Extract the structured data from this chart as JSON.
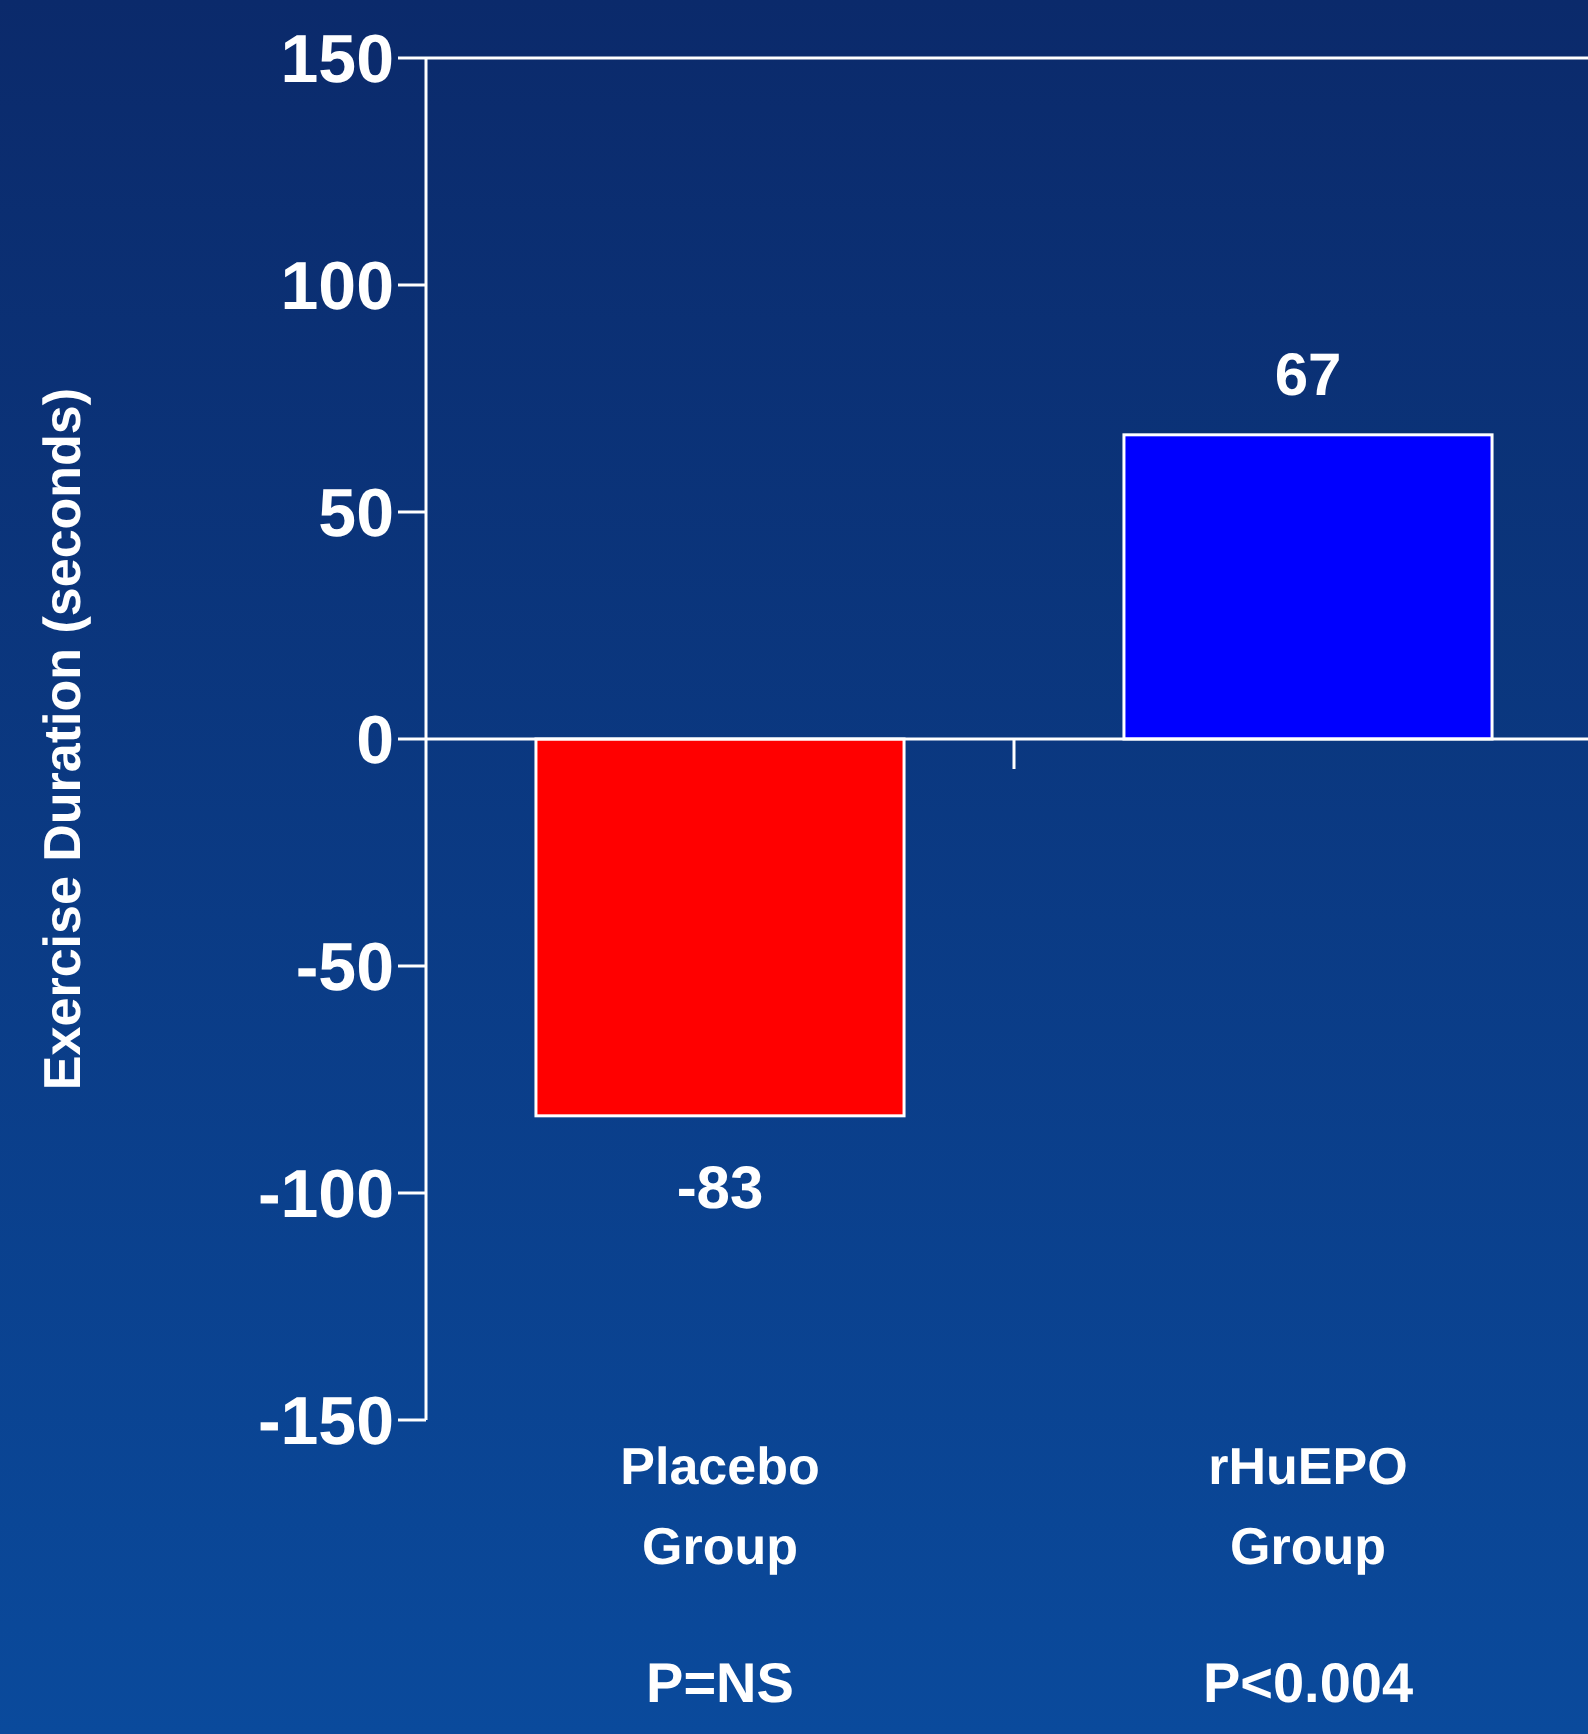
{
  "chart_data": {
    "type": "bar",
    "ylabel": "Exercise Duration (seconds)",
    "categories": [
      "Placebo Group",
      "rHuEPO Group"
    ],
    "values": [
      -83,
      67
    ],
    "colors": [
      "#ff0000",
      "#0000ff"
    ],
    "ylim": [
      -150,
      150
    ],
    "yticks": [
      -150,
      -100,
      -50,
      0,
      50,
      100,
      150
    ],
    "data_labels": true,
    "annotations": [
      "P=NS",
      "P<0.004"
    ]
  }
}
